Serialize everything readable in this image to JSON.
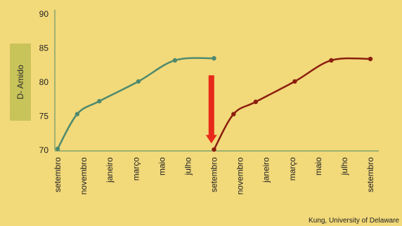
{
  "chart_data": {
    "type": "line",
    "ylabel": "D- Amido",
    "ylim": [
      70,
      90
    ],
    "yticks": [
      70,
      75,
      80,
      85,
      90
    ],
    "xticks": [
      "setembro",
      "novembro",
      "janeiro",
      "março",
      "maio",
      "julho",
      "setembro",
      "novembro",
      "janeiro",
      "março",
      "maio",
      "julho",
      "setembro"
    ],
    "series": [
      {
        "color": "#4f8a6e",
        "points": [
          {
            "x": 0,
            "y": 70.2
          },
          {
            "x": 0.75,
            "y": 75.3
          },
          {
            "x": 1.6,
            "y": 77.2
          },
          {
            "x": 3.1,
            "y": 80.1
          },
          {
            "x": 4.5,
            "y": 83.2
          },
          {
            "x": 6.0,
            "y": 83.5
          }
        ]
      },
      {
        "color": "#8b1e0e",
        "points": [
          {
            "x": 6.0,
            "y": 70.1
          },
          {
            "x": 6.75,
            "y": 75.3
          },
          {
            "x": 7.6,
            "y": 77.1
          },
          {
            "x": 9.1,
            "y": 80.1
          },
          {
            "x": 10.5,
            "y": 83.2
          },
          {
            "x": 12.0,
            "y": 83.4
          }
        ]
      }
    ],
    "annotations": [
      {
        "type": "arrow",
        "direction": "down",
        "color": "#e8291a",
        "x": 5.9,
        "y_from": 81,
        "y_to": 71
      }
    ]
  },
  "credit": "Kung, University of Delaware"
}
